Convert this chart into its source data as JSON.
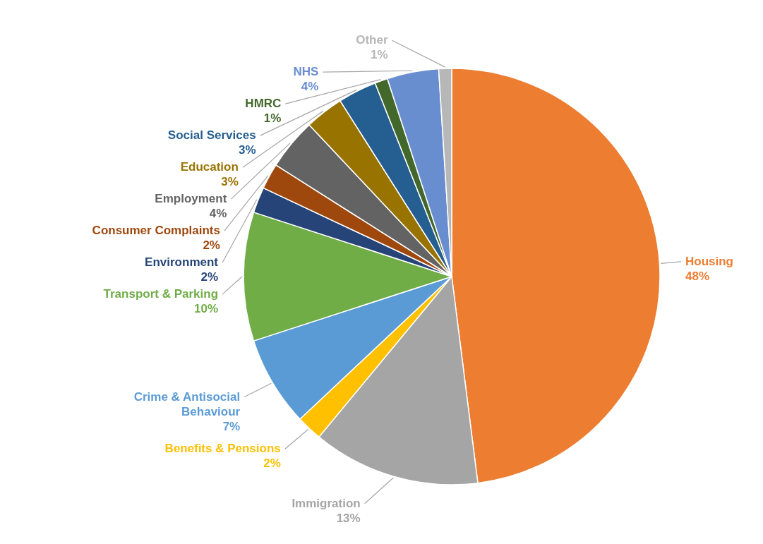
{
  "chart_data": {
    "type": "pie",
    "categories": [
      "Housing",
      "Immigration",
      "Benefits & Pensions",
      "Crime & Antisocial Behaviour",
      "Transport & Parking",
      "Environment",
      "Consumer Complaints",
      "Employment",
      "Education",
      "Social Services",
      "HMRC",
      "NHS",
      "Other"
    ],
    "values": [
      48,
      13,
      2,
      7,
      10,
      2,
      2,
      4,
      3,
      3,
      1,
      4,
      1
    ],
    "value_labels": [
      "48%",
      "13%",
      "2%",
      "7%",
      "10%",
      "2%",
      "2%",
      "4%",
      "3%",
      "3%",
      "1%",
      "4%",
      "1%"
    ],
    "colors": [
      "#ed7d31",
      "#a5a5a5",
      "#ffc000",
      "#5b9bd5",
      "#70ad47",
      "#264478",
      "#9e480e",
      "#636363",
      "#997300",
      "#255e91",
      "#43682b",
      "#698ed0",
      "#b7b7b7"
    ]
  }
}
